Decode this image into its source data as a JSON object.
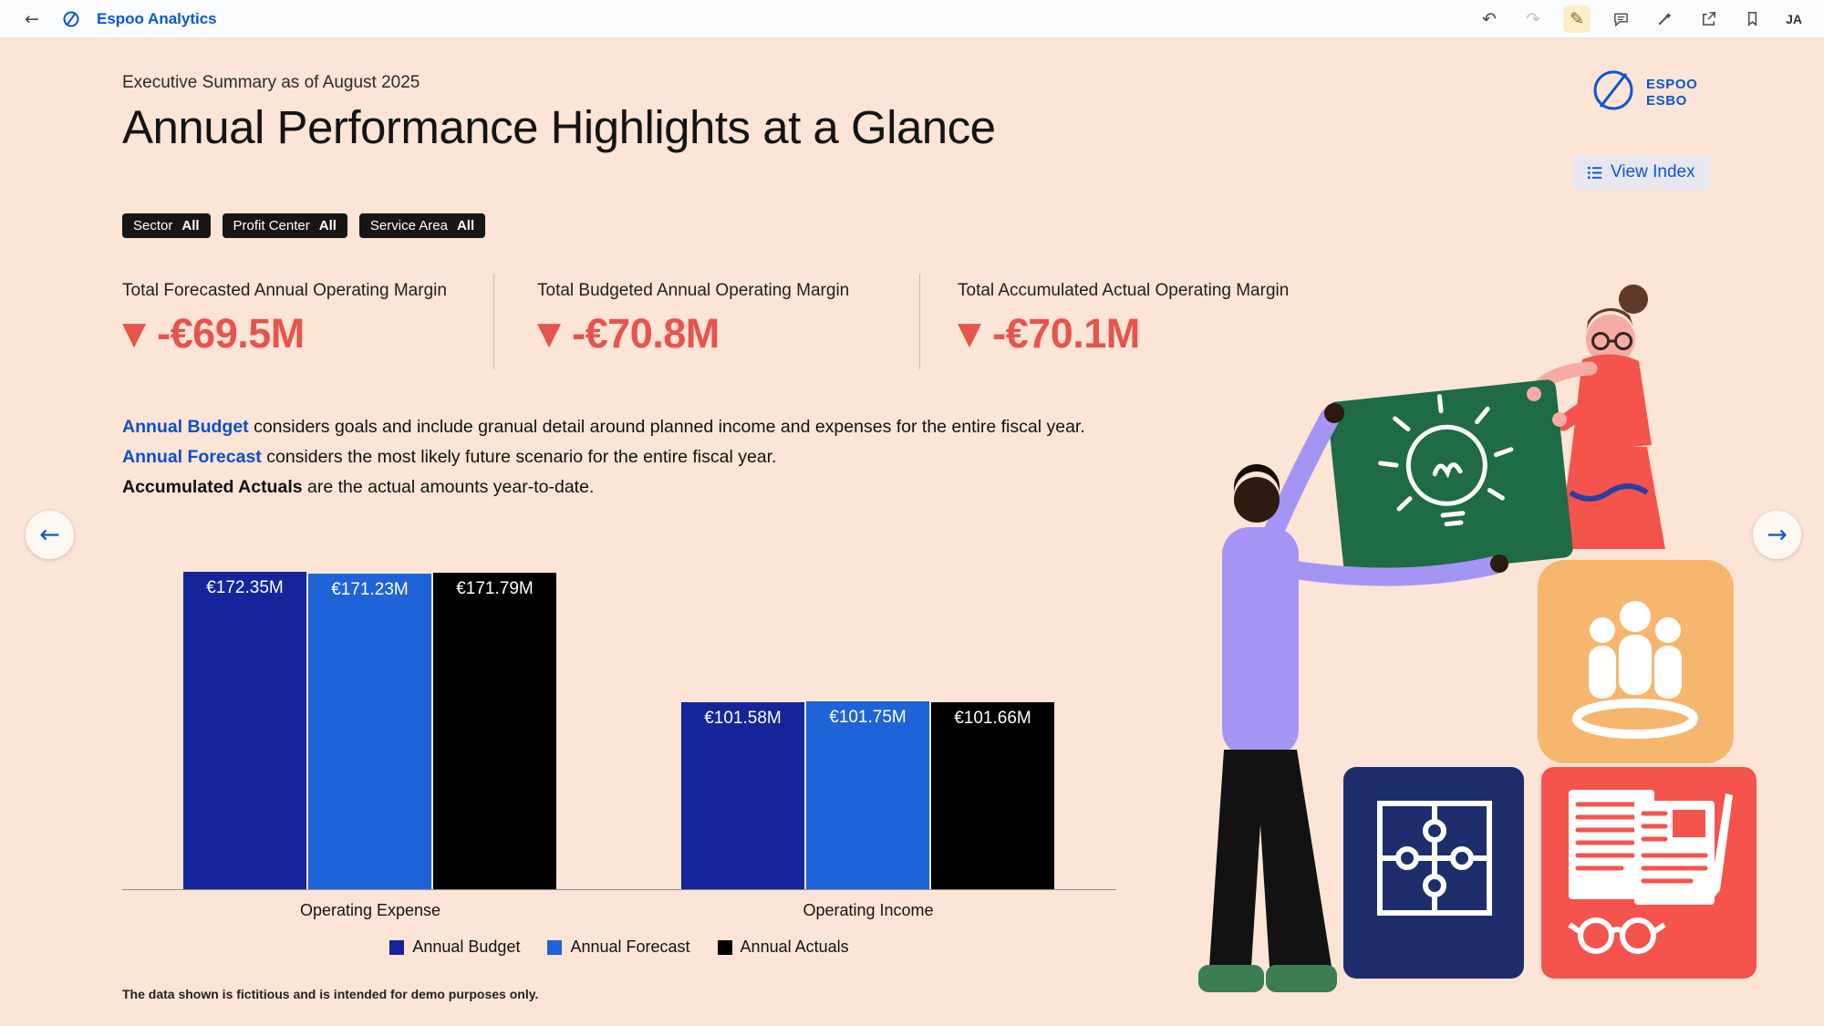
{
  "toolbar": {
    "app_title": "Espoo Analytics",
    "user_initials": "JA",
    "icons": [
      "back",
      "undo",
      "redo",
      "edit",
      "comment",
      "tools",
      "share",
      "bookmark"
    ]
  },
  "brand": {
    "logo_line1": "ESPOO",
    "logo_line2": "ESBO"
  },
  "header": {
    "subtitle": "Executive Summary as of August 2025",
    "title": "Annual Performance Highlights at a Glance",
    "view_index_label": "View Index"
  },
  "filters": [
    {
      "label": "Sector",
      "value": "All"
    },
    {
      "label": "Profit Center",
      "value": "All"
    },
    {
      "label": "Service Area",
      "value": "All"
    }
  ],
  "kpis": [
    {
      "label": "Total Forecasted Annual Operating Margin",
      "value": "-€69.5M",
      "trend": "down"
    },
    {
      "label": "Total Budgeted Annual Operating Margin",
      "value": "-€70.8M",
      "trend": "down"
    },
    {
      "label": "Total Accumulated Actual Operating Margin",
      "value": "-€70.1M",
      "trend": "down"
    }
  ],
  "descriptions": [
    {
      "term": "Annual Budget",
      "text": "considers goals and include granual detail around planned income and expenses for the entire fiscal year."
    },
    {
      "term": "Annual Forecast",
      "text": "considers the most likely future scenario for the entire fiscal year."
    },
    {
      "term": "Accumulated Actuals",
      "text": "are the actual amounts year-to-date."
    }
  ],
  "chart_data": {
    "type": "bar",
    "categories": [
      "Operating Expense",
      "Operating Income"
    ],
    "series": [
      {
        "name": "Annual Budget",
        "color": "#16259b",
        "values": [
          172.35,
          101.58
        ]
      },
      {
        "name": "Annual Forecast",
        "color": "#1f63d8",
        "values": [
          171.23,
          101.75
        ]
      },
      {
        "name": "Annual Actuals",
        "color": "#000000",
        "values": [
          171.79,
          101.66
        ]
      }
    ],
    "value_labels": [
      [
        "€172.35M",
        "€171.23M",
        "€171.79M"
      ],
      [
        "€101.58M",
        "€101.75M",
        "€101.66M"
      ]
    ],
    "unit": "EUR millions",
    "ylim": [
      0,
      190
    ],
    "grid": false,
    "legend_position": "bottom"
  },
  "footnote": "The data shown is fictitious and is intended for demo purposes only.",
  "colors": {
    "background": "#fce4d6",
    "accent_blue": "#0b57d0",
    "negative_red": "#e5554d",
    "chip_bg": "#161616"
  }
}
